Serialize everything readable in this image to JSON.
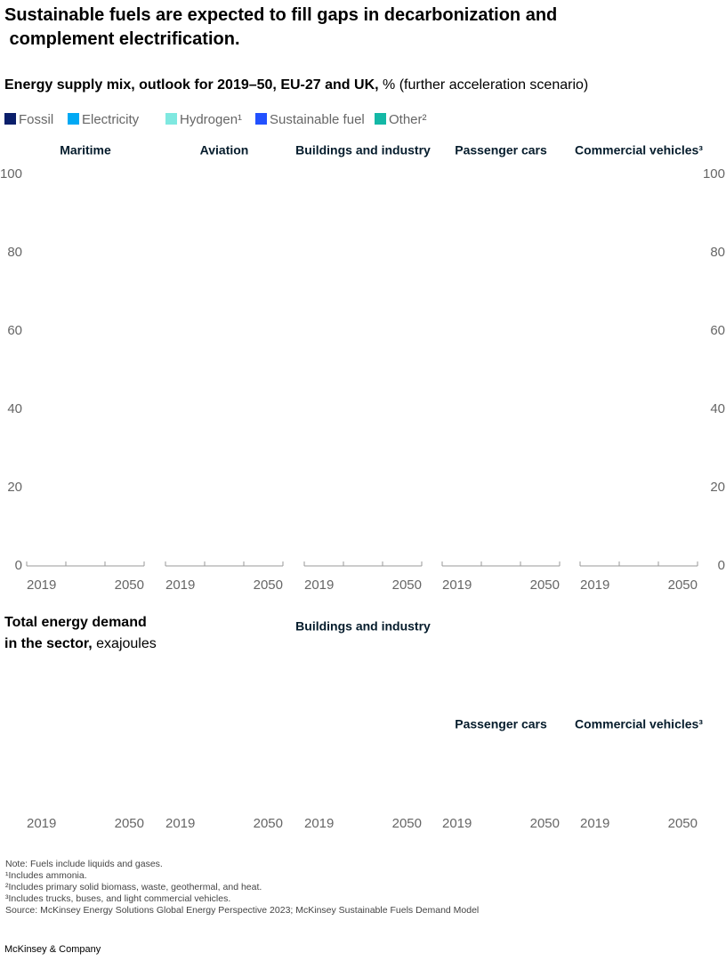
{
  "chart_data": {
    "type": "bar",
    "title": "Sustainable fuels are expected to fill gaps in decarbonization and complement electrification.",
    "subtitle": "Energy supply mix, outlook for 2019–50, EU-27 and UK,",
    "subtitle_unit": "% (further acceleration scenario)",
    "series": [
      {
        "name": "Fossil",
        "color": "#0b1f6b"
      },
      {
        "name": "Electricity",
        "color": "#00a9f4"
      },
      {
        "name": "Hydrogen¹",
        "color": "#7fe8e0"
      },
      {
        "name": "Sustainable fuel",
        "color": "#2251ff"
      },
      {
        "name": "Other²",
        "color": "#14b8a6"
      }
    ],
    "ylim": [
      0,
      100
    ],
    "yticks": [
      0,
      20,
      40,
      60,
      80,
      100
    ],
    "panels": [
      {
        "title": "Maritime",
        "categories": [
          "2019",
          "2050"
        ]
      },
      {
        "title": "Aviation",
        "categories": [
          "2019",
          "2050"
        ]
      },
      {
        "title": "Buildings and industry",
        "categories": [
          "2019",
          "2050"
        ]
      },
      {
        "title": "Passenger cars",
        "categories": [
          "2019",
          "2050"
        ]
      },
      {
        "title": "Commercial vehicles³",
        "categories": [
          "2019",
          "2050"
        ]
      }
    ],
    "demand_title": "Total energy demand",
    "demand_title_2": "in the sector,",
    "demand_unit": "exajoules",
    "demand_panels": [
      {
        "categories": [
          "2019",
          "2050"
        ]
      },
      {
        "categories": [
          "2019",
          "2050"
        ]
      },
      {
        "title": "Buildings and industry",
        "categories": [
          "2019",
          "2050"
        ]
      },
      {
        "title": "Passenger cars",
        "categories": [
          "2019",
          "2050"
        ]
      },
      {
        "title": "Commercial vehicles³",
        "categories": [
          "2019",
          "2050"
        ]
      }
    ],
    "notes": [
      "Note: Fuels include liquids and gases.",
      "¹Includes ammonia.",
      "²Includes primary solid biomass, waste, geothermal, and heat.",
      "³Includes trucks, buses, and light commercial vehicles.",
      "Source: McKinsey Energy Solutions Global Energy Perspective 2023; McKinsey Sustainable Fuels Demand Model"
    ],
    "footer": "McKinsey & Company"
  }
}
